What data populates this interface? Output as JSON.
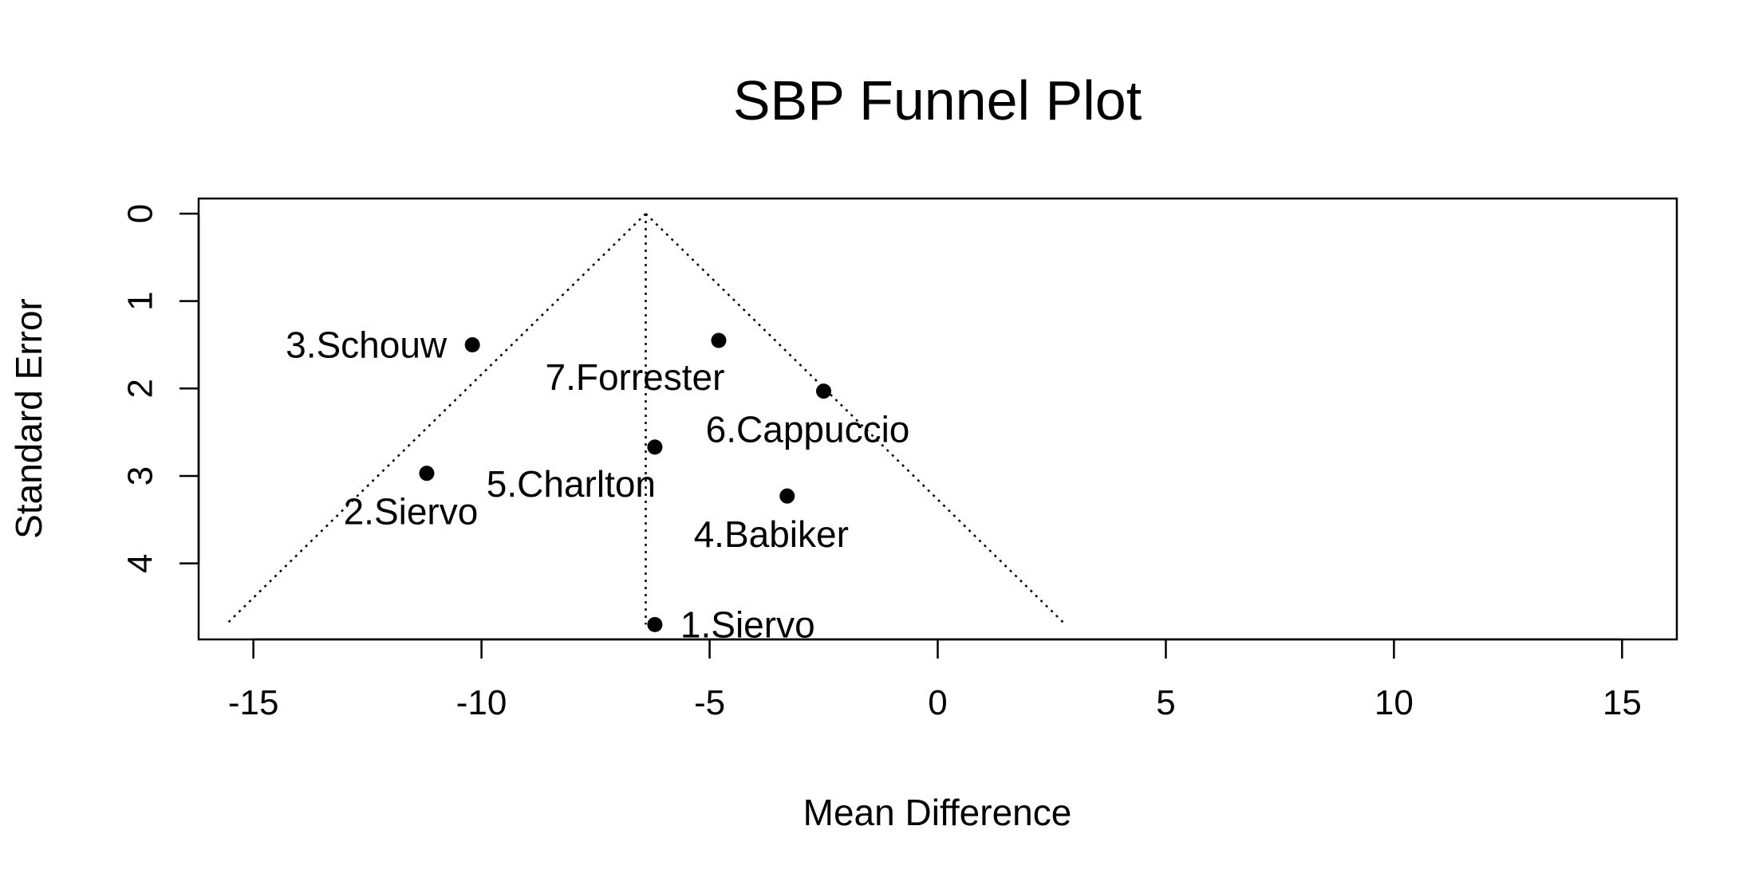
{
  "chart_data": {
    "type": "scatter",
    "title": "SBP Funnel Plot",
    "xlabel": "Mean Difference",
    "ylabel": "Standard Error",
    "xlim": [
      -16.2,
      16.2
    ],
    "ylim": [
      0,
      4.87
    ],
    "y_reversed": true,
    "x_ticks": [
      -15,
      -10,
      -5,
      0,
      5,
      10,
      15
    ],
    "x_tick_labels": [
      "-15",
      "-10",
      "-5",
      "0",
      "5",
      "10",
      "15"
    ],
    "y_ticks": [
      0,
      1,
      2,
      3,
      4
    ],
    "y_tick_labels": [
      "0",
      "1",
      "2",
      "3",
      "4"
    ],
    "grid": false,
    "funnel": {
      "center": -6.4,
      "left_bottom": [
        -15.6,
        4.7
      ],
      "right_bottom": [
        2.8,
        4.7
      ],
      "line_style": "dotted"
    },
    "points": [
      {
        "label": "1.Siervo",
        "x": -6.2,
        "y": 4.7,
        "label_side": "right"
      },
      {
        "label": "2.Siervo",
        "x": -11.2,
        "y": 2.97,
        "label_side": "below"
      },
      {
        "label": "3.Schouw",
        "x": -10.2,
        "y": 1.5,
        "label_side": "left"
      },
      {
        "label": "4.Babiker",
        "x": -3.3,
        "y": 3.23,
        "label_side": "below"
      },
      {
        "label": "5.Charlton",
        "x": -6.2,
        "y": 2.67,
        "label_side": "below-left"
      },
      {
        "label": "6.Cappuccio",
        "x": -2.5,
        "y": 2.03,
        "label_side": "below"
      },
      {
        "label": "7.Forrester",
        "x": -4.8,
        "y": 1.45,
        "label_side": "below-left"
      }
    ]
  }
}
